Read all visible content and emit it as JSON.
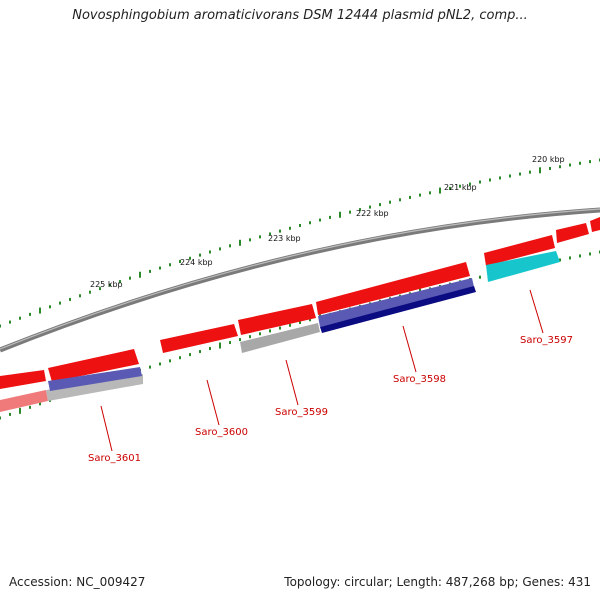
{
  "title": "Novosphingobium aromaticivorans DSM 12444 plasmid pNL2, comp...",
  "footer": {
    "accession": "Accession: NC_009427",
    "summary": "Topology: circular; Length: 487,268 bp; Genes: 431"
  },
  "colors": {
    "backbone": "#7a7a7a",
    "ticks": "#2a8a2a",
    "forward_gene": "#ee1111",
    "reverse_navy": "#0c0c82",
    "reverse_slate": "#5a5ab4",
    "reverse_gray": "#a8a8a8",
    "reverse_cyan": "#17c6cc",
    "reverse_pink": "#f07a7a",
    "label": "#cc0000"
  },
  "ruler": [
    {
      "label": "220 kbp"
    },
    {
      "label": "221 kbp"
    },
    {
      "label": "222 kbp"
    },
    {
      "label": "223 kbp"
    },
    {
      "label": "224 kbp"
    },
    {
      "label": "225 kbp"
    }
  ],
  "gene_labels": [
    {
      "name": "Saro_3597"
    },
    {
      "name": "Saro_3598"
    },
    {
      "name": "Saro_3599"
    },
    {
      "name": "Saro_3600"
    },
    {
      "name": "Saro_3601"
    }
  ]
}
